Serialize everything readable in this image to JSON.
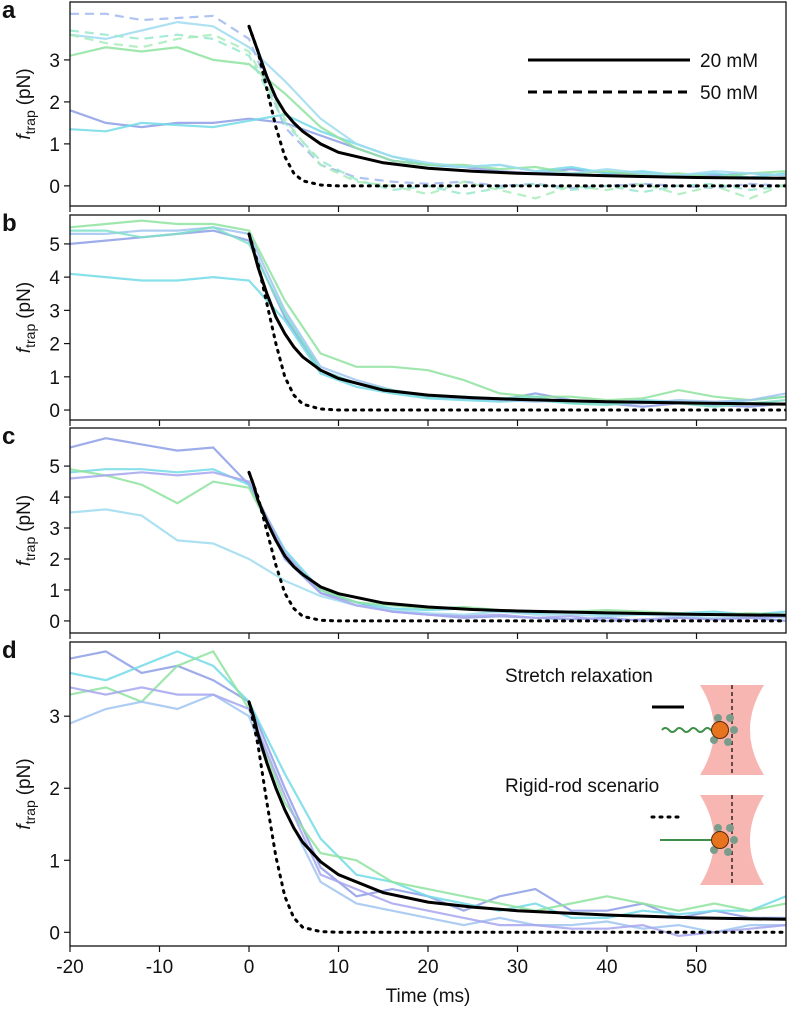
{
  "chart_data": [
    {
      "type": "line",
      "label": "a",
      "ylabel": {
        "symbol": "f",
        "subscript": "trap",
        "unit": "(pN)"
      },
      "xlim": [
        -20,
        60
      ],
      "ylim": [
        -0.48,
        4.38
      ],
      "yticks": [
        0,
        1,
        2,
        3
      ],
      "xticks": [
        -20,
        -10,
        0,
        10,
        20,
        30,
        40,
        50
      ],
      "xtick_labels": false,
      "legend": [
        {
          "label": "20 mM",
          "style": "solid"
        },
        {
          "label": "50 mM",
          "style": "dashed"
        }
      ],
      "x": [
        -20,
        -16,
        -12,
        -8,
        -4,
        0,
        4,
        8,
        12,
        16,
        20,
        24,
        28,
        32,
        36,
        40,
        44,
        48,
        52,
        56,
        60
      ],
      "series": [
        {
          "color": "#8d9de6",
          "style": "solid",
          "values": [
            1.8,
            1.5,
            1.4,
            1.5,
            1.5,
            1.6,
            1.5,
            1.2,
            0.9,
            0.6,
            0.5,
            0.45,
            0.35,
            0.3,
            0.4,
            0.3,
            0.3,
            0.2,
            0.25,
            0.3,
            0.25
          ]
        },
        {
          "color": "#72dbe6",
          "style": "solid",
          "values": [
            1.35,
            1.3,
            1.5,
            1.45,
            1.4,
            1.55,
            1.7,
            1.3,
            1.0,
            0.7,
            0.5,
            0.45,
            0.5,
            0.35,
            0.45,
            0.3,
            0.35,
            0.25,
            0.3,
            0.2,
            0.3
          ]
        },
        {
          "color": "#8fe3a0",
          "style": "solid",
          "values": [
            3.1,
            3.3,
            3.2,
            3.3,
            3.0,
            2.9,
            2.2,
            1.4,
            0.9,
            0.6,
            0.5,
            0.5,
            0.4,
            0.45,
            0.3,
            0.35,
            0.25,
            0.3,
            0.2,
            0.3,
            0.35
          ]
        },
        {
          "color": "#9fdcf0",
          "style": "solid",
          "values": [
            3.6,
            3.5,
            3.7,
            3.9,
            3.8,
            3.3,
            2.5,
            1.6,
            1.0,
            0.7,
            0.55,
            0.45,
            0.5,
            0.35,
            0.3,
            0.4,
            0.3,
            0.25,
            0.35,
            0.3,
            0.25
          ]
        },
        {
          "color": "#a0b8f0",
          "style": "dashed",
          "values": [
            4.1,
            4.1,
            3.95,
            4.0,
            4.05,
            3.5,
            1.4,
            0.5,
            0.2,
            0.1,
            0.05,
            0.1,
            0.0,
            0.05,
            -0.05,
            0.0,
            0.05,
            0.0,
            -0.05,
            0.05,
            0.0
          ]
        },
        {
          "color": "#98e8d0",
          "style": "dashed",
          "values": [
            3.7,
            3.6,
            3.5,
            3.6,
            3.5,
            3.1,
            1.5,
            0.6,
            0.15,
            -0.1,
            0.0,
            -0.2,
            -0.05,
            0.05,
            -0.1,
            0.0,
            -0.15,
            0.0,
            0.05,
            -0.1,
            0.0
          ]
        },
        {
          "color": "#a8ecb8",
          "style": "dashed",
          "values": [
            3.6,
            3.4,
            3.3,
            3.5,
            3.6,
            3.2,
            1.6,
            0.5,
            0.1,
            0.0,
            -0.2,
            0.1,
            -0.1,
            -0.3,
            0.0,
            -0.1,
            0.05,
            -0.2,
            0.0,
            -0.3,
            0.05
          ]
        },
        {
          "color": "#000000",
          "style": "solid",
          "x": [
            0,
            0.5,
            1,
            2,
            3,
            4,
            5,
            6,
            8,
            10,
            15,
            20,
            25,
            30,
            40,
            50,
            60
          ],
          "values": [
            3.8,
            3.5,
            3.2,
            2.6,
            2.1,
            1.75,
            1.5,
            1.3,
            1.0,
            0.8,
            0.55,
            0.42,
            0.35,
            0.3,
            0.24,
            0.2,
            0.18
          ]
        },
        {
          "color": "#000000",
          "style": "dotted",
          "x": [
            0,
            1,
            2,
            3,
            4,
            5,
            6,
            8,
            10,
            60
          ],
          "values": [
            3.8,
            3.2,
            2.3,
            1.4,
            0.7,
            0.3,
            0.12,
            0.02,
            0,
            0
          ]
        }
      ]
    },
    {
      "type": "line",
      "label": "b",
      "ylabel": {
        "symbol": "f",
        "subscript": "trap",
        "unit": "(pN)"
      },
      "xlim": [
        -20,
        60
      ],
      "ylim": [
        -0.3,
        5.87
      ],
      "yticks": [
        0,
        1,
        2,
        3,
        4,
        5
      ],
      "xticks": [
        -20,
        -10,
        0,
        10,
        20,
        30,
        40,
        50
      ],
      "xtick_labels": false,
      "x": [
        -20,
        -16,
        -12,
        -8,
        -4,
        0,
        4,
        8,
        12,
        16,
        20,
        24,
        28,
        32,
        36,
        40,
        44,
        48,
        52,
        56,
        60
      ],
      "series": [
        {
          "color": "#8d9de6",
          "style": "solid",
          "values": [
            5.0,
            5.1,
            5.2,
            5.3,
            5.4,
            5.1,
            2.8,
            1.2,
            0.8,
            0.6,
            0.4,
            0.35,
            0.3,
            0.5,
            0.3,
            0.2,
            0.1,
            0.2,
            0.15,
            0.1,
            0.2
          ]
        },
        {
          "color": "#72dbe6",
          "style": "solid",
          "values": [
            4.1,
            4.0,
            3.9,
            3.9,
            4.0,
            3.9,
            2.7,
            1.1,
            0.7,
            0.5,
            0.35,
            0.3,
            0.25,
            0.3,
            0.2,
            0.2,
            0.3,
            0.25,
            0.2,
            0.3,
            0.4
          ]
        },
        {
          "color": "#8fe3a0",
          "style": "solid",
          "values": [
            5.5,
            5.6,
            5.7,
            5.6,
            5.6,
            5.4,
            3.3,
            1.7,
            1.3,
            1.3,
            1.2,
            0.9,
            0.5,
            0.4,
            0.4,
            0.3,
            0.35,
            0.6,
            0.4,
            0.3,
            0.4
          ]
        },
        {
          "color": "#9fc4f0",
          "style": "solid",
          "values": [
            5.3,
            5.3,
            5.4,
            5.4,
            5.5,
            5.3,
            3.0,
            1.3,
            0.9,
            0.6,
            0.45,
            0.4,
            0.3,
            0.25,
            0.3,
            0.2,
            0.2,
            0.3,
            0.25,
            0.3,
            0.5
          ]
        },
        {
          "color": "#7fe0c8",
          "style": "solid",
          "values": [
            5.4,
            5.4,
            5.2,
            5.3,
            5.5,
            5.0,
            2.9,
            1.2,
            0.8,
            0.6,
            0.4,
            0.4,
            0.35,
            0.4,
            0.2,
            0.15,
            0.25,
            0.2,
            0.1,
            0.2,
            0.3
          ]
        },
        {
          "color": "#000000",
          "style": "solid",
          "x": [
            0,
            0.5,
            1,
            2,
            3,
            4,
            5,
            6,
            8,
            10,
            15,
            20,
            25,
            30,
            40,
            50,
            60
          ],
          "values": [
            5.3,
            4.8,
            4.3,
            3.5,
            2.8,
            2.3,
            1.9,
            1.6,
            1.2,
            0.95,
            0.6,
            0.45,
            0.37,
            0.32,
            0.25,
            0.21,
            0.18
          ]
        },
        {
          "color": "#000000",
          "style": "dotted",
          "x": [
            0,
            1,
            2,
            3,
            4,
            5,
            6,
            8,
            10,
            60
          ],
          "values": [
            5.3,
            4.4,
            3.2,
            2.0,
            1.0,
            0.45,
            0.18,
            0.03,
            0,
            0
          ]
        }
      ]
    },
    {
      "type": "line",
      "label": "c",
      "ylabel": {
        "symbol": "f",
        "subscript": "trap",
        "unit": "(pN)"
      },
      "xlim": [
        -20,
        60
      ],
      "ylim": [
        -0.39,
        6.23
      ],
      "yticks": [
        0,
        1,
        2,
        3,
        4,
        5
      ],
      "xticks": [
        -20,
        -10,
        0,
        10,
        20,
        30,
        40,
        50
      ],
      "xtick_labels": false,
      "x": [
        -20,
        -16,
        -12,
        -8,
        -4,
        0,
        4,
        8,
        12,
        16,
        20,
        24,
        28,
        32,
        36,
        40,
        44,
        48,
        52,
        56,
        60
      ],
      "series": [
        {
          "color": "#8d9de6",
          "style": "solid",
          "values": [
            5.6,
            5.9,
            5.7,
            5.5,
            5.6,
            4.4,
            2.0,
            0.9,
            0.6,
            0.3,
            0.2,
            0.1,
            0.15,
            0.1,
            0.05,
            0.1,
            0.0,
            0.1,
            0.05,
            0.1,
            0.0
          ]
        },
        {
          "color": "#72dbe6",
          "style": "solid",
          "values": [
            4.8,
            4.9,
            4.9,
            4.8,
            4.9,
            4.4,
            2.3,
            1.0,
            0.6,
            0.4,
            0.35,
            0.4,
            0.3,
            0.25,
            0.3,
            0.2,
            0.2,
            0.25,
            0.3,
            0.2,
            0.3
          ]
        },
        {
          "color": "#8fe3a0",
          "style": "solid",
          "values": [
            4.9,
            4.7,
            4.4,
            3.8,
            4.5,
            4.3,
            2.1,
            1.0,
            0.6,
            0.5,
            0.4,
            0.45,
            0.35,
            0.3,
            0.3,
            0.35,
            0.3,
            0.25,
            0.2,
            0.25,
            0.2
          ]
        },
        {
          "color": "#9fdcf0",
          "style": "solid",
          "values": [
            3.5,
            3.6,
            3.4,
            2.6,
            2.5,
            2.0,
            1.3,
            0.8,
            0.5,
            0.35,
            0.25,
            0.2,
            0.3,
            0.2,
            0.2,
            0.15,
            0.2,
            0.15,
            0.1,
            0.15,
            0.1
          ]
        },
        {
          "color": "#a7a6ee",
          "style": "solid",
          "values": [
            4.6,
            4.7,
            4.8,
            4.7,
            4.8,
            4.5,
            2.2,
            0.9,
            0.5,
            0.3,
            0.2,
            0.15,
            0.2,
            0.1,
            0.15,
            0.0,
            0.05,
            0.1,
            0.05,
            0.1,
            0.15
          ]
        },
        {
          "color": "#000000",
          "style": "solid",
          "x": [
            0,
            0.5,
            1,
            2,
            3,
            4,
            5,
            6,
            8,
            10,
            15,
            20,
            25,
            30,
            40,
            50,
            60
          ],
          "values": [
            4.8,
            4.4,
            3.9,
            3.2,
            2.6,
            2.1,
            1.75,
            1.5,
            1.1,
            0.88,
            0.58,
            0.45,
            0.37,
            0.32,
            0.26,
            0.21,
            0.18
          ]
        },
        {
          "color": "#000000",
          "style": "dotted",
          "x": [
            0,
            1,
            2,
            3,
            4,
            5,
            6,
            8,
            10,
            60
          ],
          "values": [
            4.8,
            4.0,
            2.9,
            1.8,
            0.9,
            0.4,
            0.15,
            0.02,
            0,
            0
          ]
        }
      ]
    },
    {
      "type": "line",
      "label": "d",
      "ylabel": {
        "symbol": "f",
        "subscript": "trap",
        "unit": "(pN)"
      },
      "xlabel": "Time (ms)",
      "xlim": [
        -20,
        60
      ],
      "ylim": [
        -0.19,
        4.03
      ],
      "yticks": [
        0,
        1,
        2,
        3
      ],
      "xticks": [
        -20,
        -10,
        0,
        10,
        20,
        30,
        40,
        50
      ],
      "xtick_labels": true,
      "annotations": [
        {
          "text": "Stretch relaxation",
          "style": "solid"
        },
        {
          "text": "Rigid-rod scenario",
          "style": "dotted"
        }
      ],
      "x": [
        -20,
        -16,
        -12,
        -8,
        -4,
        0,
        4,
        8,
        12,
        16,
        20,
        24,
        28,
        32,
        36,
        40,
        44,
        48,
        52,
        56,
        60
      ],
      "series": [
        {
          "color": "#8d9de6",
          "style": "solid",
          "values": [
            3.8,
            3.9,
            3.6,
            3.7,
            3.5,
            3.2,
            2.0,
            0.9,
            0.5,
            0.6,
            0.5,
            0.3,
            0.5,
            0.6,
            0.3,
            0.3,
            0.4,
            0.2,
            0.3,
            0.2,
            0.2
          ]
        },
        {
          "color": "#72dbe6",
          "style": "solid",
          "values": [
            3.6,
            3.5,
            3.7,
            3.9,
            3.7,
            3.2,
            2.2,
            1.3,
            0.8,
            0.7,
            0.5,
            0.4,
            0.3,
            0.4,
            0.2,
            0.2,
            0.3,
            0.25,
            0.3,
            0.3,
            0.5
          ]
        },
        {
          "color": "#8fe3a0",
          "style": "solid",
          "values": [
            3.3,
            3.4,
            3.2,
            3.7,
            3.9,
            3.1,
            1.8,
            1.1,
            1.0,
            0.7,
            0.6,
            0.5,
            0.4,
            0.3,
            0.4,
            0.5,
            0.4,
            0.3,
            0.4,
            0.3,
            0.4
          ]
        },
        {
          "color": "#9fc4f0",
          "style": "solid",
          "values": [
            2.9,
            3.1,
            3.2,
            3.1,
            3.3,
            3.0,
            1.7,
            0.7,
            0.4,
            0.3,
            0.2,
            0.1,
            0.2,
            0.1,
            0.1,
            0.15,
            0.05,
            0.1,
            0.0,
            0.1,
            0.1
          ]
        },
        {
          "color": "#a7a6ee",
          "style": "solid",
          "values": [
            3.4,
            3.3,
            3.4,
            3.3,
            3.3,
            3.1,
            1.9,
            0.8,
            0.6,
            0.4,
            0.3,
            0.2,
            0.1,
            0.1,
            0.05,
            0.05,
            0.1,
            -0.05,
            0.0,
            0.05,
            0.1
          ]
        },
        {
          "color": "#000000",
          "style": "solid",
          "x": [
            0,
            0.5,
            1,
            2,
            3,
            4,
            5,
            6,
            8,
            10,
            15,
            20,
            25,
            30,
            40,
            50,
            60
          ],
          "values": [
            3.2,
            3.0,
            2.75,
            2.35,
            2.0,
            1.7,
            1.45,
            1.25,
            0.98,
            0.8,
            0.55,
            0.42,
            0.35,
            0.3,
            0.24,
            0.2,
            0.18
          ]
        },
        {
          "color": "#000000",
          "style": "dotted",
          "x": [
            0,
            1,
            2,
            3,
            4,
            5,
            6,
            8,
            10,
            60
          ],
          "values": [
            3.2,
            2.6,
            1.8,
            1.05,
            0.5,
            0.2,
            0.07,
            0.01,
            0,
            0
          ]
        }
      ]
    }
  ]
}
